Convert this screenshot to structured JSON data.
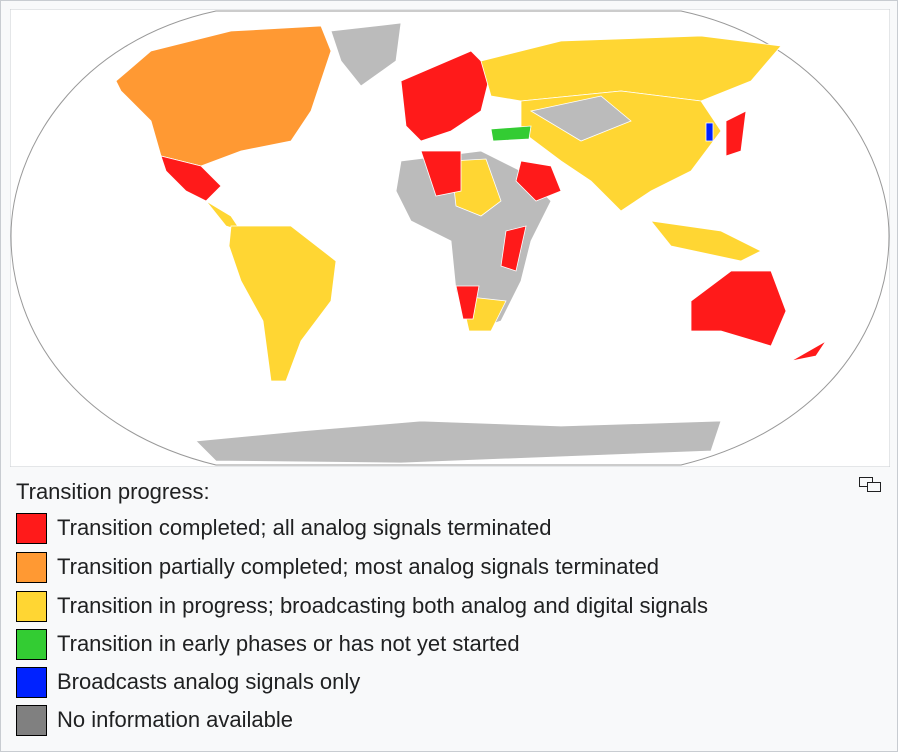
{
  "legend": {
    "title": "Transition progress:",
    "items": [
      {
        "label": "Transition completed; all analog signals terminated",
        "color": "#ff1a1a"
      },
      {
        "label": "Transition partially completed; most analog signals terminated",
        "color": "#ff9933"
      },
      {
        "label": "Transition in progress; broadcasting both analog and digital signals",
        "color": "#ffd633"
      },
      {
        "label": "Transition in early phases or has not yet started",
        "color": "#33cc33"
      },
      {
        "label": "Broadcasts analog signals only",
        "color": "#0022ff"
      },
      {
        "label": "No information available",
        "color": "#808080"
      }
    ]
  }
}
